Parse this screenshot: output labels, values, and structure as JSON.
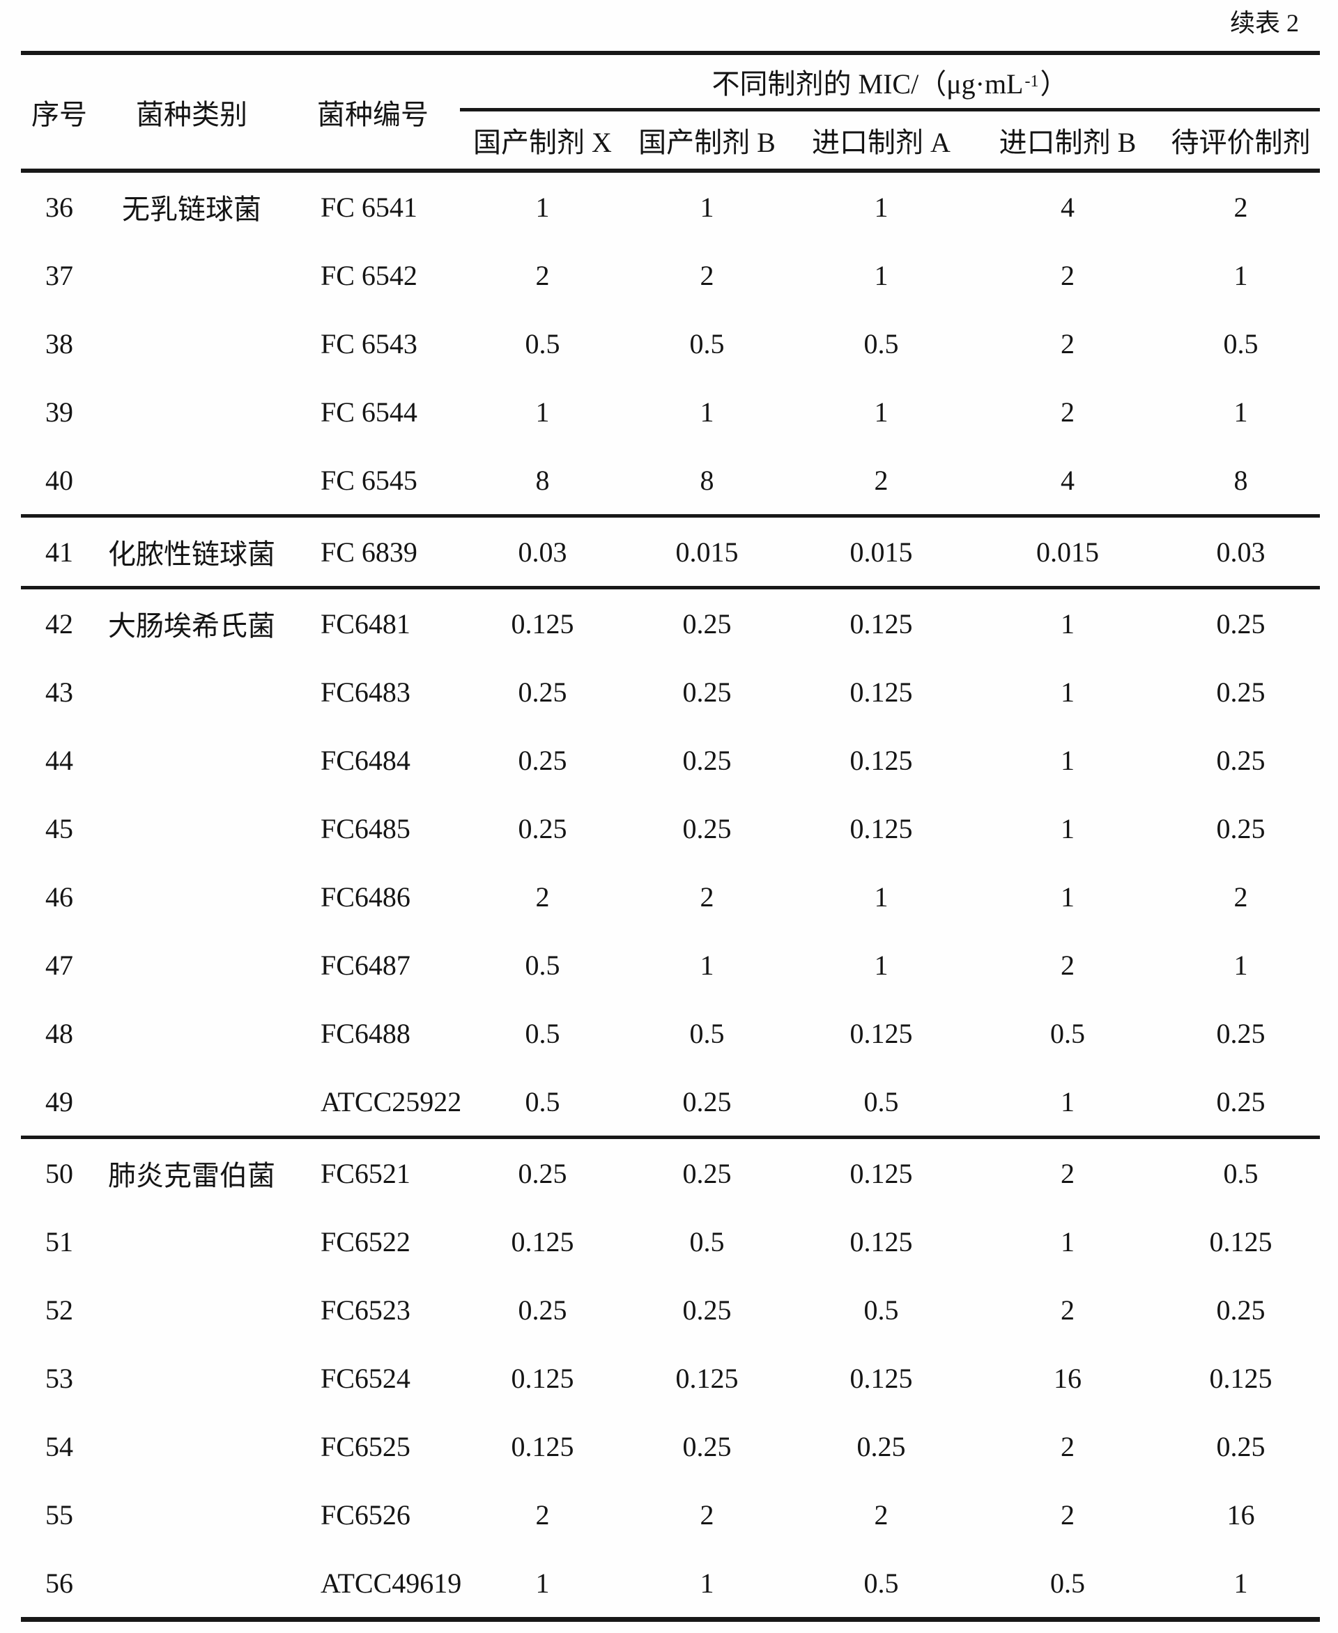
{
  "page": {
    "continuation_label": "续表 2"
  },
  "table": {
    "headers": {
      "no": "序号",
      "category": "菌种类别",
      "strain_id": "菌种编号",
      "mic_group": {
        "prefix": "不同制剂的 MIC/（μg·mL",
        "superscript": "-1",
        "suffix": "）"
      },
      "preparations": [
        "国产制剂 X",
        "国产制剂 B",
        "进口制剂 A",
        "进口制剂 B",
        "待评价制剂"
      ]
    },
    "groups": [
      {
        "rows": [
          {
            "no": "36",
            "category": "无乳链球菌",
            "strain": "FC 6541",
            "values": [
              "1",
              "1",
              "1",
              "4",
              "2"
            ]
          },
          {
            "no": "37",
            "category": "",
            "strain": "FC 6542",
            "values": [
              "2",
              "2",
              "1",
              "2",
              "1"
            ]
          },
          {
            "no": "38",
            "category": "",
            "strain": "FC 6543",
            "values": [
              "0.5",
              "0.5",
              "0.5",
              "2",
              "0.5"
            ]
          },
          {
            "no": "39",
            "category": "",
            "strain": "FC 6544",
            "values": [
              "1",
              "1",
              "1",
              "2",
              "1"
            ]
          },
          {
            "no": "40",
            "category": "",
            "strain": "FC 6545",
            "values": [
              "8",
              "8",
              "2",
              "4",
              "8"
            ]
          }
        ]
      },
      {
        "rows": [
          {
            "no": "41",
            "category": "化脓性链球菌",
            "strain": "FC 6839",
            "values": [
              "0.03",
              "0.015",
              "0.015",
              "0.015",
              "0.03"
            ]
          }
        ]
      },
      {
        "rows": [
          {
            "no": "42",
            "category": "大肠埃希氏菌",
            "strain": "FC6481",
            "values": [
              "0.125",
              "0.25",
              "0.125",
              "1",
              "0.25"
            ]
          },
          {
            "no": "43",
            "category": "",
            "strain": "FC6483",
            "values": [
              "0.25",
              "0.25",
              "0.125",
              "1",
              "0.25"
            ]
          },
          {
            "no": "44",
            "category": "",
            "strain": "FC6484",
            "values": [
              "0.25",
              "0.25",
              "0.125",
              "1",
              "0.25"
            ]
          },
          {
            "no": "45",
            "category": "",
            "strain": "FC6485",
            "values": [
              "0.25",
              "0.25",
              "0.125",
              "1",
              "0.25"
            ]
          },
          {
            "no": "46",
            "category": "",
            "strain": "FC6486",
            "values": [
              "2",
              "2",
              "1",
              "1",
              "2"
            ]
          },
          {
            "no": "47",
            "category": "",
            "strain": "FC6487",
            "values": [
              "0.5",
              "1",
              "1",
              "2",
              "1"
            ]
          },
          {
            "no": "48",
            "category": "",
            "strain": "FC6488",
            "values": [
              "0.5",
              "0.5",
              "0.125",
              "0.5",
              "0.25"
            ]
          },
          {
            "no": "49",
            "category": "",
            "strain": "ATCC25922",
            "values": [
              "0.5",
              "0.25",
              "0.5",
              "1",
              "0.25"
            ]
          }
        ]
      },
      {
        "rows": [
          {
            "no": "50",
            "category": "肺炎克雷伯菌",
            "strain": "FC6521",
            "values": [
              "0.25",
              "0.25",
              "0.125",
              "2",
              "0.5"
            ]
          },
          {
            "no": "51",
            "category": "",
            "strain": "FC6522",
            "values": [
              "0.125",
              "0.5",
              "0.125",
              "1",
              "0.125"
            ]
          },
          {
            "no": "52",
            "category": "",
            "strain": "FC6523",
            "values": [
              "0.25",
              "0.25",
              "0.5",
              "2",
              "0.25"
            ]
          },
          {
            "no": "53",
            "category": "",
            "strain": "FC6524",
            "values": [
              "0.125",
              "0.125",
              "0.125",
              "16",
              "0.125"
            ]
          },
          {
            "no": "54",
            "category": "",
            "strain": "FC6525",
            "values": [
              "0.125",
              "0.25",
              "0.25",
              "2",
              "0.25"
            ]
          },
          {
            "no": "55",
            "category": "",
            "strain": "FC6526",
            "values": [
              "2",
              "2",
              "2",
              "2",
              "16"
            ]
          },
          {
            "no": "56",
            "category": "",
            "strain": "ATCC49619",
            "values": [
              "1",
              "1",
              "0.5",
              "0.5",
              "1"
            ]
          }
        ]
      }
    ]
  }
}
